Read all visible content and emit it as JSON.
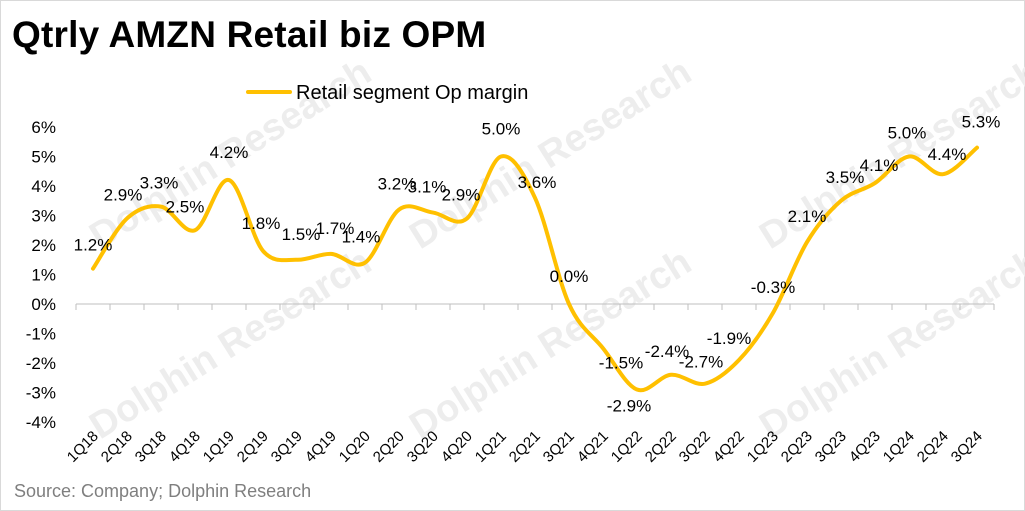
{
  "title": "Qtrly AMZN Retail biz OPM",
  "source": "Source: Company; Dolphin Research",
  "watermark": "Dolphin Research",
  "colors": {
    "series": "#FFC000",
    "axis": "#bfbfbf",
    "text": "#000000",
    "source": "#7f7f7f"
  },
  "chart_data": {
    "type": "line",
    "title": "Qtrly AMZN Retail biz OPM",
    "x": [
      "1Q18",
      "2Q18",
      "3Q18",
      "4Q18",
      "1Q19",
      "2Q19",
      "3Q19",
      "4Q19",
      "1Q20",
      "2Q20",
      "3Q20",
      "4Q20",
      "1Q21",
      "2Q21",
      "3Q21",
      "4Q21",
      "1Q22",
      "2Q22",
      "3Q22",
      "4Q22",
      "1Q23",
      "2Q23",
      "3Q23",
      "4Q23",
      "1Q24",
      "2Q24",
      "3Q24"
    ],
    "series": [
      {
        "name": "Retail segment Op margin",
        "values": [
          1.2,
          2.9,
          3.3,
          2.5,
          4.2,
          1.8,
          1.5,
          1.7,
          1.4,
          3.2,
          3.1,
          2.9,
          5.0,
          3.6,
          0.0,
          -1.5,
          -2.9,
          -2.4,
          -2.7,
          -1.9,
          -0.3,
          2.1,
          3.5,
          4.1,
          5.0,
          4.4,
          5.3
        ],
        "labels": [
          "1.2%",
          "2.9%",
          "3.3%",
          "2.5%",
          "4.2%",
          "1.8%",
          "1.5%",
          "1.7%",
          "1.4%",
          "3.2%",
          "3.1%",
          "2.9%",
          "5.0%",
          "3.6%",
          "0.0%",
          "-1.5%",
          "-2.9%",
          "-2.4%",
          "-2.7%",
          "-1.9%",
          "-0.3%",
          "2.1%",
          "3.5%",
          "4.1%",
          "5.0%",
          "4.4%",
          "5.3%"
        ]
      }
    ],
    "ylim": [
      -4,
      6
    ],
    "yticks": [
      -4,
      -3,
      -2,
      -1,
      0,
      1,
      2,
      3,
      4,
      5,
      6
    ],
    "ytick_labels": [
      "-4%",
      "-3%",
      "-2%",
      "-1%",
      "0%",
      "1%",
      "2%",
      "3%",
      "4%",
      "5%",
      "6%"
    ],
    "grid": false,
    "legend": "top-center",
    "smooth": true
  }
}
